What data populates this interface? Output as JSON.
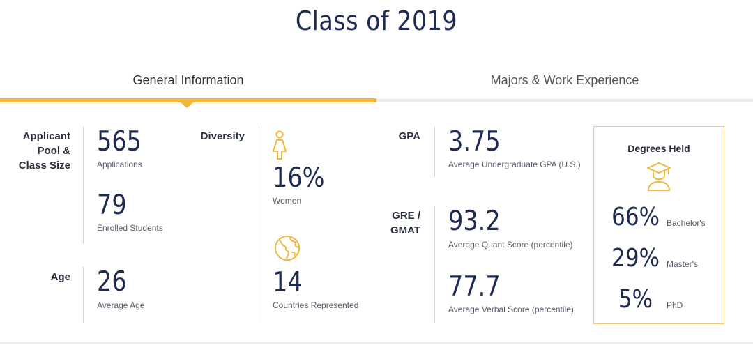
{
  "header": {
    "title": "Class of 2019"
  },
  "tabs": [
    {
      "label": "General Information",
      "active": true
    },
    {
      "label": "Majors & Work Experience",
      "active": false
    }
  ],
  "applicant": {
    "label": "Applicant Pool & Class Size",
    "label_lines": [
      "Applicant",
      "Pool &",
      "Class Size"
    ],
    "applications_value": "565",
    "applications_label": "Applications",
    "enrolled_value": "79",
    "enrolled_label": "Enrolled Students"
  },
  "age": {
    "label": "Age",
    "value": "26",
    "sub": "Average Age"
  },
  "diversity": {
    "label": "Diversity",
    "women_value": "16%",
    "women_label": "Women",
    "countries_value": "14",
    "countries_label": "Countries Represented",
    "icons": [
      "woman-icon",
      "globe-icon"
    ]
  },
  "gpa": {
    "label": "GPA",
    "value": "3.75",
    "sub": "Average Undergraduate GPA (U.S.)"
  },
  "gre": {
    "label_lines": [
      "GRE /",
      "GMAT"
    ],
    "quant_value": "93.2",
    "quant_label": "Average Quant Score (percentile)",
    "verbal_value": "77.7",
    "verbal_label": "Average Verbal Score (percentile)"
  },
  "degrees": {
    "title": "Degrees Held",
    "icon": "graduate-icon",
    "items": [
      {
        "value": "66%",
        "label": "Bachelor's"
      },
      {
        "value": "29%",
        "label": "Master's"
      },
      {
        "value": "5%",
        "label": "PhD"
      }
    ]
  },
  "colors": {
    "accent": "#f2b63d",
    "navy": "#1e2b4f",
    "divider": "#f1d38f"
  }
}
